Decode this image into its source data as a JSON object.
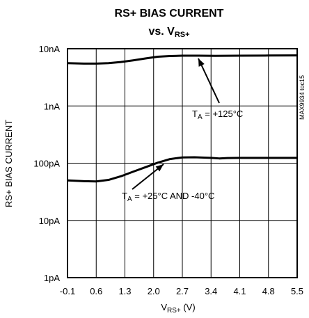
{
  "chart_data": {
    "type": "line",
    "title": "RS+ BIAS CURRENT",
    "subtitle": {
      "prefix": "vs. V",
      "sub": "RS+"
    },
    "xlabel": {
      "main": "V",
      "sub": "RS+",
      "suffix": " (V)"
    },
    "ylabel": "RS+ BIAS CURRENT",
    "xlim": [
      -0.1,
      5.5
    ],
    "ylim_log": [
      1,
      10000
    ],
    "yscale": "log",
    "grid": true,
    "x_ticks": [
      "-0.1",
      "0.6",
      "1.3",
      "2.0",
      "2.7",
      "3.4",
      "4.1",
      "4.8",
      "5.5"
    ],
    "y_ticks": [
      {
        "value": 1,
        "label": "1pA"
      },
      {
        "value": 10,
        "label": "10pA"
      },
      {
        "value": 100,
        "label": "100pA"
      },
      {
        "value": 1000,
        "label": "1nA"
      },
      {
        "value": 10000,
        "label": "10nA"
      }
    ],
    "y_units": "pA",
    "series": [
      {
        "x": [
          -0.1,
          0.3,
          0.6,
          0.9,
          1.2,
          1.5,
          1.8,
          2.1,
          2.4,
          2.7,
          3.1,
          3.5,
          4.1,
          4.8,
          5.5
        ],
        "y": [
          5600,
          5500,
          5500,
          5600,
          5850,
          6250,
          6750,
          7250,
          7450,
          7550,
          7550,
          7500,
          7550,
          7600,
          7650
        ]
      },
      {
        "x": [
          -0.1,
          0.3,
          0.6,
          0.9,
          1.2,
          1.5,
          1.8,
          2.1,
          2.4,
          2.7,
          3.0,
          3.4,
          3.6,
          3.8,
          4.1,
          4.8,
          5.5
        ],
        "y": [
          50,
          48.5,
          48,
          51,
          59,
          71,
          85,
          102,
          118,
          126,
          127,
          124,
          121,
          123,
          124,
          124,
          124
        ]
      }
    ],
    "annotations": [
      {
        "main": "T",
        "sub": "A",
        "rest": " = +125°C"
      },
      {
        "main": "T",
        "sub": "A",
        "rest": " = +25°C AND -40°C"
      }
    ],
    "watermark": "MAX9934 toc15"
  }
}
